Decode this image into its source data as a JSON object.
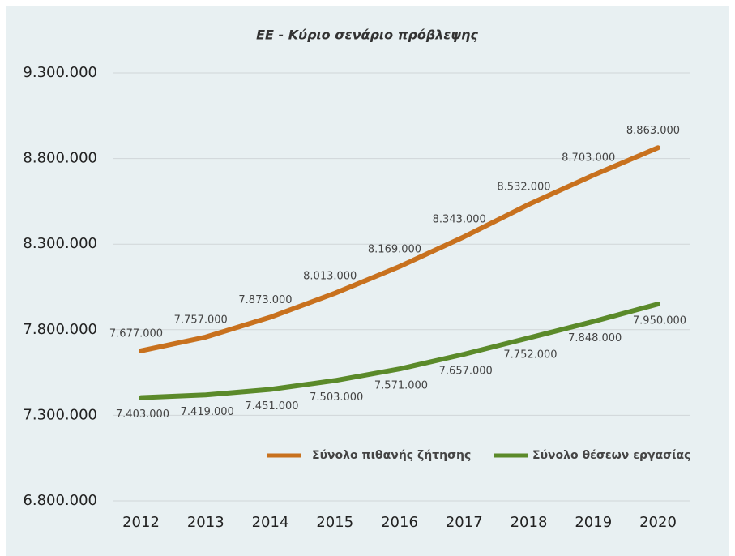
{
  "chart_data": {
    "type": "line",
    "title": "ΕΕ - Κύριο σενάριο πρόβλεψης",
    "categories": [
      "2012",
      "2013",
      "2014",
      "2015",
      "2016",
      "2017",
      "2018",
      "2019",
      "2020"
    ],
    "series": [
      {
        "name": "Σύνολο πιθανής ζήτησης",
        "color": "#c8711e",
        "values": [
          7677000,
          7757000,
          7873000,
          8013000,
          8169000,
          8343000,
          8532000,
          8703000,
          8863000
        ],
        "value_labels": [
          "7.677.000",
          "7.757.000",
          "7.873.000",
          "8.013.000",
          "8.169.000",
          "8.343.000",
          "8.532.000",
          "8.703.000",
          "8.863.000"
        ]
      },
      {
        "name": "Σύνολο θέσεων εργασίας",
        "color": "#5b8a2a",
        "values": [
          7403000,
          7419000,
          7451000,
          7503000,
          7571000,
          7657000,
          7752000,
          7848000,
          7950000
        ],
        "value_labels": [
          "7.403.000",
          "7.419.000",
          "7.451.000",
          "7.503.000",
          "7.571.000",
          "7.657.000",
          "7.752.000",
          "7.848.000",
          "7.950.000"
        ]
      }
    ],
    "ylim": [
      6800000,
      9300000
    ],
    "yticks": [
      {
        "value": 6800000,
        "label": "6.800.000"
      },
      {
        "value": 7300000,
        "label": "7.300.000"
      },
      {
        "value": 7800000,
        "label": "7.800.000"
      },
      {
        "value": 8300000,
        "label": "8.300.000"
      },
      {
        "value": 8800000,
        "label": "8.800.000"
      },
      {
        "value": 9300000,
        "label": "9.300.000"
      }
    ],
    "grid": true,
    "legend": "bottom"
  }
}
